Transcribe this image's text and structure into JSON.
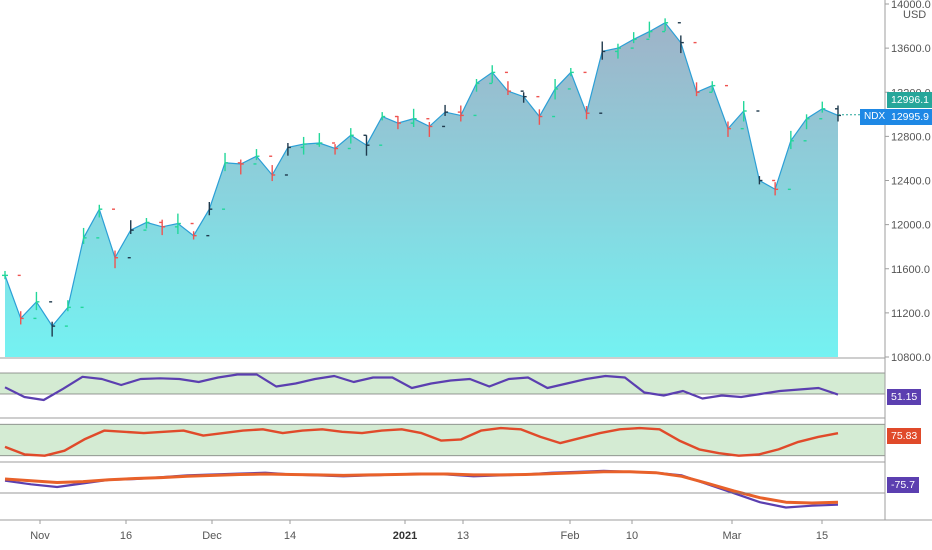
{
  "symbol": "NDX",
  "currency": "USD",
  "price_axis": {
    "ticks": [
      14000,
      13600,
      13200,
      12800,
      12400,
      12000,
      11600,
      11200,
      10800
    ],
    "labels": [
      "14000.0",
      "13600.0",
      "13200.0",
      "12800.0",
      "12400.0",
      "12000.0",
      "11600.0",
      "11200.0",
      "10800.0"
    ],
    "range": [
      10800,
      14000
    ]
  },
  "time_axis": {
    "labels": [
      "Nov",
      "16",
      "Dec",
      "14",
      "2021",
      "13",
      "Feb",
      "10",
      "Mar",
      "15"
    ],
    "bold": [
      "2021"
    ]
  },
  "tags": {
    "last_price": "12996.1",
    "ndx_label": "NDX",
    "ndx_value": "12995.9",
    "ind1": "51.15",
    "ind2": "75.83",
    "ind3": "-75.7"
  },
  "colors": {
    "up": "#26a69a",
    "up_light": "#22d79a",
    "down": "#ef5350",
    "dark_bar": "#1f3a4d",
    "area_top": "#9fb3c8",
    "area_bottom": "#74f2f2",
    "line": "#2b9fd6",
    "band": "#d4ebd3",
    "purple": "#5b3fb0",
    "orange": "#e8612a",
    "red": "#e04a2a",
    "accent": "#1e88e5"
  },
  "chart_data": [
    {
      "type": "area",
      "series": [
        {
          "name": "NDX",
          "values": [
            11540,
            11150,
            11300,
            11080,
            11250,
            11880,
            12140,
            11700,
            11950,
            12020,
            11980,
            12010,
            11900,
            12140,
            12560,
            12550,
            12620,
            12450,
            12700,
            12730,
            12740,
            12690,
            12810,
            12720,
            12980,
            12920,
            12960,
            12890,
            13020,
            12990,
            13280,
            13380,
            13210,
            13160,
            12980,
            13230,
            13380,
            13010,
            13570,
            13600,
            13680,
            13750,
            13830,
            13650,
            13200,
            13260,
            12870,
            13030,
            12400,
            12320,
            12760,
            12960,
            13050,
            12990
          ],
          "ohlc_sample_count": 54
        }
      ],
      "ylim": [
        10800,
        14000
      ]
    },
    {
      "type": "line",
      "series": [
        {
          "name": "",
          "values": [
            61,
            48,
            44,
            59,
            75,
            72,
            64,
            72,
            73,
            72,
            68,
            74,
            78,
            78,
            62,
            66,
            72,
            76,
            68,
            74,
            74,
            60,
            66,
            70,
            72,
            62,
            72,
            74,
            60,
            66,
            72,
            76,
            74,
            54,
            50,
            56,
            46,
            50,
            48,
            52,
            56,
            58,
            60,
            51.15
          ]
        }
      ],
      "band": [
        52,
        80
      ]
    },
    {
      "type": "line",
      "series": [
        {
          "name": "",
          "values": [
            54,
            42,
            40,
            48,
            66,
            80,
            78,
            76,
            78,
            80,
            72,
            76,
            80,
            82,
            76,
            80,
            82,
            78,
            76,
            80,
            82,
            76,
            64,
            66,
            80,
            84,
            82,
            70,
            60,
            68,
            76,
            82,
            84,
            82,
            64,
            50,
            44,
            40,
            42,
            50,
            62,
            70,
            75.83
          ]
        }
      ],
      "band": [
        40,
        90
      ]
    },
    {
      "type": "line",
      "series": [
        {
          "name": "",
          "values": [
            -22,
            -30,
            -36,
            -28,
            -20,
            -18,
            -14,
            -10,
            -8,
            -6,
            -4,
            -8,
            -10,
            -12,
            -10,
            -8,
            -6,
            -8,
            -12,
            -10,
            -8,
            -4,
            -2,
            0,
            -2,
            -4,
            -10,
            -30,
            -50,
            -70,
            -82,
            -78,
            -75.7
          ]
        },
        {
          "name": "",
          "values": [
            -18,
            -22,
            -26,
            -24,
            -20,
            -17,
            -15,
            -12,
            -10,
            -8,
            -7,
            -8,
            -9,
            -10,
            -9,
            -8,
            -7,
            -7,
            -9,
            -9,
            -8,
            -6,
            -4,
            -2,
            -2,
            -4,
            -12,
            -28,
            -45,
            -60,
            -70,
            -72,
            -70
          ]
        }
      ]
    }
  ]
}
